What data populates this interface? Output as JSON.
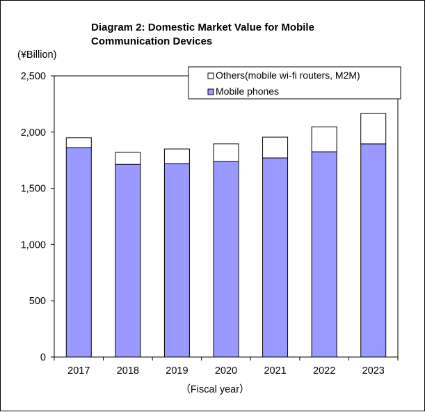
{
  "chart_data": {
    "type": "bar",
    "stacked": true,
    "title_lines": [
      "Diagram 2: Domestic Market Value for Mobile",
      "Communication Devices"
    ],
    "ylabel": "(¥Billion)",
    "xlabel": "（Fiscal year）",
    "categories": [
      "2017",
      "2018",
      "2019",
      "2020",
      "2021",
      "2022",
      "2023"
    ],
    "series": [
      {
        "name": "Mobile phones",
        "values": [
          1862,
          1713,
          1720,
          1738,
          1770,
          1825,
          1895
        ],
        "color": "#9999ff"
      },
      {
        "name": "Others(mobile wi-fi routers, M2M)",
        "values": [
          88,
          107,
          130,
          157,
          185,
          222,
          270
        ],
        "color": "#ffffff"
      }
    ],
    "ylim": [
      0,
      2500
    ],
    "yticks": [
      0,
      500,
      1000,
      1500,
      2000,
      2500
    ],
    "ytick_labels": [
      "0",
      "500",
      "1,000",
      "1,500",
      "2,000",
      "2,500"
    ],
    "grid": false,
    "legend_position": "top-right",
    "legend_order": [
      "Others(mobile wi-fi routers, M2M)",
      "Mobile phones"
    ]
  }
}
